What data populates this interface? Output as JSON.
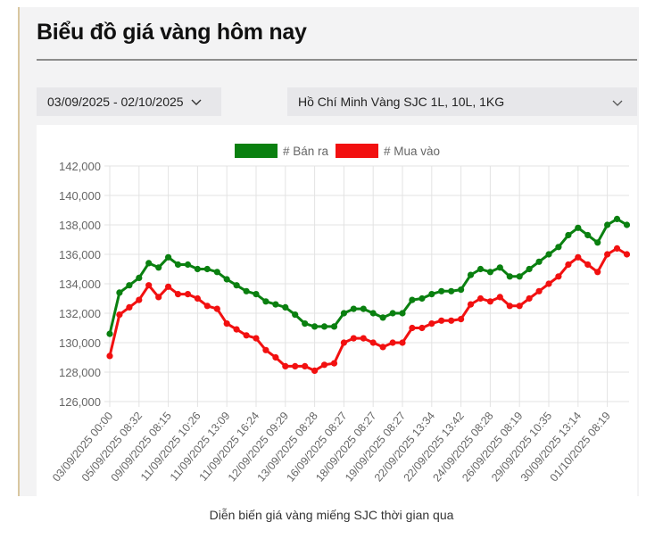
{
  "header": {
    "title": "Biểu đồ giá vàng hôm nay"
  },
  "filters": {
    "date_range": "03/09/2025 - 02/10/2025",
    "location_product": "Hồ Chí Minh Vàng SJC 1L, 10L, 1KG"
  },
  "caption": "Diễn biến giá vàng miếng SJC thời gian qua",
  "colors": {
    "sell": "#0a8010",
    "buy": "#f21010",
    "grid": "#e3e3e3",
    "axis_text": "#666666"
  },
  "chart_data": {
    "type": "line",
    "title": "",
    "xlabel": "",
    "ylabel": "",
    "ylim": [
      126000,
      142000
    ],
    "yticks": [
      126000,
      128000,
      130000,
      132000,
      134000,
      136000,
      138000,
      140000,
      142000
    ],
    "ytick_labels": [
      "126,000",
      "128,000",
      "130,000",
      "132,000",
      "134,000",
      "136,000",
      "138,000",
      "140,000",
      "142,000"
    ],
    "grid": true,
    "legend_position": "top",
    "x_tick_labels": [
      "03/09/2025 00:00",
      "05/09/2025 08:32",
      "09/09/2025 08:15",
      "11/09/2025 10:26",
      "11/09/2025 13:09",
      "11/09/2025 16:24",
      "12/09/2025 09:29",
      "13/09/2025 08:28",
      "16/09/2025 08:27",
      "18/09/2025 08:27",
      "19/09/2025 08:27",
      "22/09/2025 13:34",
      "22/09/2025 13:42",
      "24/09/2025 08:28",
      "26/09/2025 08:19",
      "29/09/2025 10:35",
      "30/09/2025 13:14",
      "01/10/2025 08:19"
    ],
    "points_per_tick": 3,
    "series": [
      {
        "name": "# Bán ra",
        "color": "#0a8010",
        "values": [
          130600,
          133400,
          133900,
          134400,
          135400,
          135100,
          135800,
          135300,
          135300,
          135000,
          135000,
          134800,
          134300,
          133900,
          133500,
          133300,
          132800,
          132600,
          132400,
          131900,
          131300,
          131100,
          131100,
          131100,
          132000,
          132300,
          132300,
          132000,
          131700,
          132000,
          132000,
          132900,
          133000,
          133300,
          133500,
          133500,
          133600,
          134600,
          135000,
          134800,
          135100,
          134500,
          134500,
          135000,
          135500,
          136000,
          136500,
          137300,
          137800,
          137300,
          136800,
          138000,
          138400,
          138000
        ]
      },
      {
        "name": "# Mua vào",
        "color": "#f21010",
        "values": [
          129100,
          131900,
          132400,
          132900,
          133900,
          133100,
          133800,
          133300,
          133300,
          133000,
          132500,
          132300,
          131300,
          130900,
          130500,
          130300,
          129500,
          129000,
          128400,
          128400,
          128400,
          128100,
          128500,
          128600,
          130000,
          130300,
          130300,
          130000,
          129700,
          130000,
          130000,
          131000,
          131000,
          131300,
          131500,
          131500,
          131600,
          132600,
          133000,
          132800,
          133100,
          132500,
          132500,
          133000,
          133500,
          134000,
          134500,
          135300,
          135800,
          135300,
          134800,
          136000,
          136400,
          136000
        ]
      }
    ]
  }
}
